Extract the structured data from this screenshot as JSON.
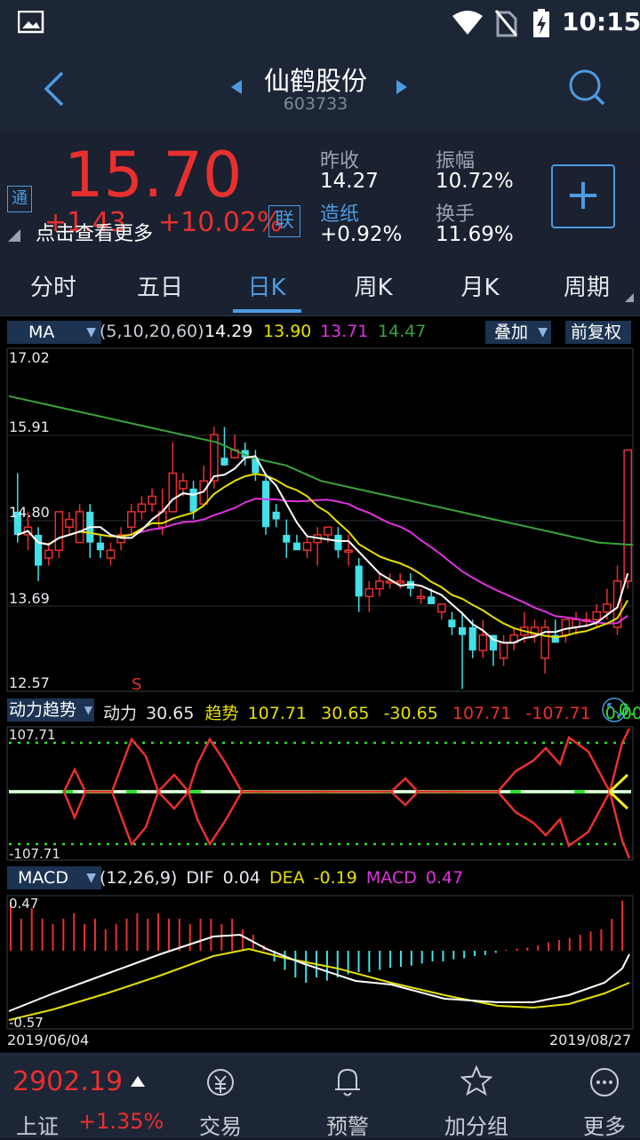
{
  "status": {
    "time": "10:15"
  },
  "header": {
    "title": "仙鹤股份",
    "code": "603733"
  },
  "quote": {
    "price": "15.70",
    "change": "+1.43",
    "change_pct": "+10.02%",
    "tong_badge": "通",
    "lian_badge": "联",
    "more_hint": "点击查看更多",
    "prev_close_label": "昨收",
    "prev_close": "14.27",
    "amplitude_label": "振幅",
    "amplitude": "10.72%",
    "sector_label": "造纸",
    "sector_change": "+0.92%",
    "turnover_label": "换手",
    "turnover": "11.69%",
    "add_symbol": "+"
  },
  "tabs": [
    "分时",
    "五日",
    "日K",
    "周K",
    "月K",
    "周期"
  ],
  "active_tab": 2,
  "ma_bar": {
    "select": "MA",
    "params": "(5,10,20,60)",
    "ma5": "14.29",
    "ma10": "13.90",
    "ma20": "13.71",
    "ma60": "14.47",
    "overlay": "叠加",
    "adjust": "前复权"
  },
  "kline": {
    "y_labels": [
      "17.02",
      "15.91",
      "14.80",
      "13.69",
      "12.57"
    ],
    "marker": "S",
    "colors": {
      "up": "#e8302f",
      "down": "#42e0e8",
      "ma5": "#ffffff",
      "ma10": "#e6e000",
      "ma20": "#e032e0",
      "ma60": "#3aa43a"
    }
  },
  "dynamics": {
    "select": "动力趋势",
    "power_label": "动力",
    "power": "30.65",
    "trend_label": "趋势",
    "trend": "107.71",
    "v1": "30.65",
    "v2": "-30.65",
    "v3": "107.71",
    "v4": "-107.71",
    "v5": "0.00",
    "v6": "0.",
    "y_top": "107.71",
    "y_bottom": "-107.71"
  },
  "macd": {
    "select": "MACD",
    "params": "(12,26,9)",
    "dif_label": "DIF",
    "dif": "0.04",
    "dea_label": "DEA",
    "dea": "-0.19",
    "macd_label": "MACD",
    "macd": "0.47",
    "y_top": "0.47",
    "y_bottom": "-0.57",
    "date_start": "2019/06/04",
    "date_end": "2019/08/27"
  },
  "bottom": {
    "index_value": "2902.19",
    "index_name": "上证",
    "index_change": "+1.35%",
    "nav": [
      "交易",
      "预警",
      "加分组",
      "更多"
    ]
  }
}
